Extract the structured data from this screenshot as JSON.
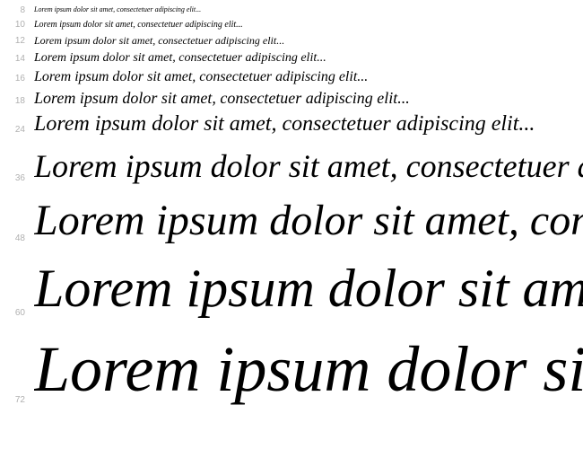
{
  "sample_text": "Lorem ipsum dolor sit amet, consectetuer adipiscing elit...",
  "sizes": [
    8,
    10,
    12,
    14,
    16,
    18,
    24,
    36,
    48,
    60,
    72
  ],
  "row_spacing": [
    3,
    3,
    4,
    4,
    4,
    5,
    12,
    12,
    14,
    14,
    14
  ],
  "label_color": "#b0b0b0",
  "text_color": "#000000",
  "background_color": "#ffffff",
  "font_style": "italic",
  "font_weight": 500,
  "label_font_size": 10,
  "label_width": 18
}
